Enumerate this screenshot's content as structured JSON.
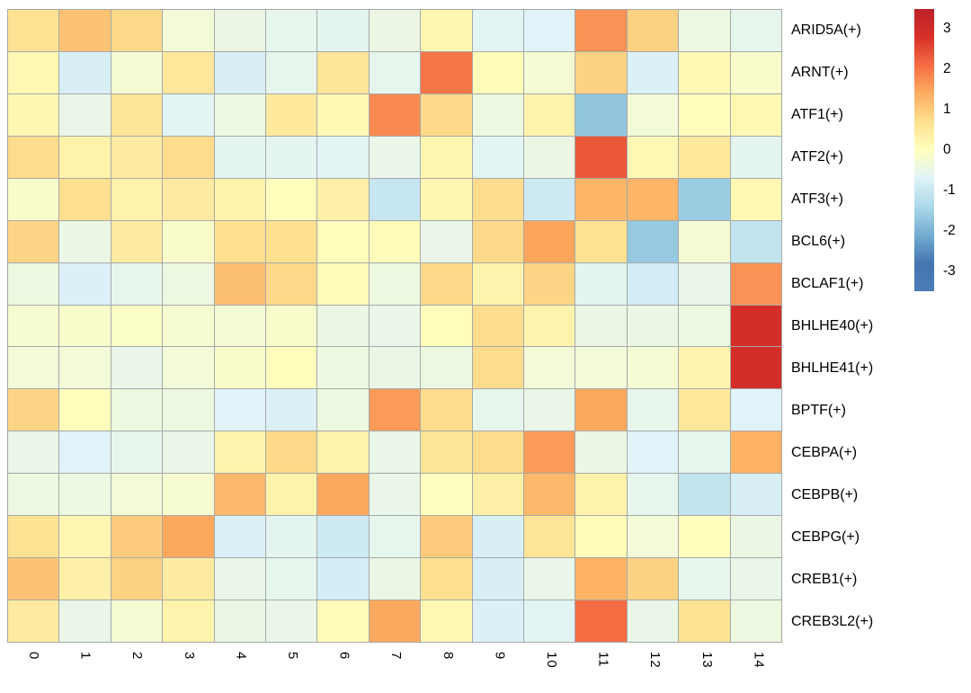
{
  "figure": {
    "background": "#ffffff",
    "grid_line_color": "#a6a9aa"
  },
  "chart_data": {
    "type": "heatmap",
    "title": "",
    "xlabel": "",
    "ylabel": "",
    "x_labels": [
      "0",
      "1",
      "2",
      "3",
      "4",
      "5",
      "6",
      "7",
      "8",
      "9",
      "10",
      "11",
      "12",
      "13",
      "14"
    ],
    "y_labels": [
      "ARID5A(+)",
      "ARNT(+)",
      "ATF1(+)",
      "ATF2(+)",
      "ATF3(+)",
      "BCL6(+)",
      "BCLAF1(+)",
      "BHLHE40(+)",
      "BHLHE41(+)",
      "BPTF(+)",
      "CEBPA(+)",
      "CEBPB(+)",
      "CEBPG(+)",
      "CREB1(+)",
      "CREB3L2(+)"
    ],
    "values": [
      [
        0.65,
        1.1,
        0.8,
        -0.3,
        -0.45,
        -0.55,
        -0.6,
        -0.45,
        0.2,
        -0.65,
        -0.7,
        1.7,
        0.9,
        -0.4,
        -0.55
      ],
      [
        0.15,
        -0.8,
        -0.25,
        0.55,
        -0.8,
        -0.55,
        0.6,
        -0.55,
        2.0,
        0.1,
        -0.25,
        0.9,
        -0.75,
        0.15,
        -0.15
      ],
      [
        0.2,
        -0.5,
        0.6,
        -0.65,
        -0.4,
        0.5,
        0.15,
        1.8,
        0.8,
        -0.4,
        0.3,
        -1.7,
        -0.3,
        0.05,
        0.15
      ],
      [
        0.75,
        0.3,
        0.45,
        0.75,
        -0.6,
        -0.6,
        -0.65,
        -0.5,
        0.2,
        -0.65,
        -0.45,
        2.35,
        0.15,
        0.5,
        -0.6
      ],
      [
        -0.15,
        0.7,
        0.3,
        0.45,
        0.3,
        0.05,
        0.35,
        -1.05,
        0.2,
        0.75,
        -0.95,
        1.3,
        1.3,
        -1.6,
        0.15
      ],
      [
        0.85,
        -0.45,
        0.45,
        -0.15,
        0.7,
        0.7,
        0.05,
        0.1,
        -0.5,
        0.8,
        1.5,
        0.65,
        -1.65,
        -0.25,
        -1.1
      ],
      [
        -0.4,
        -0.75,
        -0.55,
        -0.4,
        1.15,
        0.8,
        0.1,
        -0.4,
        0.8,
        0.25,
        0.85,
        -0.6,
        -0.9,
        -0.5,
        1.7
      ],
      [
        -0.2,
        -0.15,
        -0.1,
        -0.2,
        -0.25,
        -0.15,
        -0.45,
        -0.5,
        0.05,
        0.75,
        0.25,
        -0.45,
        -0.45,
        -0.4,
        2.9
      ],
      [
        -0.3,
        -0.3,
        -0.5,
        -0.3,
        -0.15,
        0.05,
        -0.4,
        -0.45,
        -0.4,
        0.75,
        -0.3,
        -0.3,
        -0.25,
        0.25,
        2.9
      ],
      [
        0.85,
        0.05,
        -0.4,
        -0.4,
        -0.7,
        -0.75,
        -0.4,
        1.6,
        0.75,
        -0.55,
        -0.5,
        1.45,
        -0.55,
        0.55,
        -0.7
      ],
      [
        -0.5,
        -0.7,
        -0.55,
        -0.5,
        0.25,
        0.8,
        0.3,
        -0.5,
        0.6,
        0.75,
        1.6,
        -0.45,
        -0.7,
        -0.55,
        1.35
      ],
      [
        -0.4,
        -0.4,
        -0.3,
        -0.2,
        1.25,
        0.3,
        1.45,
        -0.5,
        0.0,
        0.35,
        1.25,
        0.3,
        -0.55,
        -1.1,
        -0.8
      ],
      [
        0.65,
        0.2,
        1.0,
        1.45,
        -0.75,
        -0.6,
        -0.95,
        -0.55,
        1.0,
        -0.8,
        0.6,
        0.1,
        -0.3,
        0.05,
        -0.45
      ],
      [
        1.1,
        0.35,
        0.9,
        0.45,
        -0.5,
        -0.55,
        -0.85,
        -0.45,
        0.7,
        -0.8,
        -0.5,
        1.35,
        0.9,
        -0.55,
        -0.5
      ],
      [
        0.45,
        -0.5,
        -0.25,
        0.25,
        -0.45,
        -0.5,
        0.1,
        1.45,
        0.15,
        -0.75,
        -0.65,
        2.1,
        -0.5,
        0.65,
        -0.4
      ]
    ],
    "colormap": "RdYlBu_r",
    "vmin": -3.5,
    "vmax": 3.5,
    "colormap_anchors": [
      [
        3.5,
        "#bc2128"
      ],
      [
        2.8,
        "#d73027"
      ],
      [
        2.1,
        "#f46d43"
      ],
      [
        1.4,
        "#fdae61"
      ],
      [
        0.7,
        "#fee090"
      ],
      [
        0.0,
        "#ffffbf"
      ],
      [
        -0.7,
        "#e0f3f8"
      ],
      [
        -1.4,
        "#abd9e9"
      ],
      [
        -2.1,
        "#74add1"
      ],
      [
        -2.8,
        "#4575b1"
      ],
      [
        -3.5,
        "#4a7cb8"
      ]
    ],
    "legend_position": "right",
    "grid": true,
    "colorbar_ticks": [
      "3",
      "2",
      "1",
      "0",
      "-1",
      "-2",
      "-3"
    ],
    "colorbar_tick_values": [
      3,
      2,
      1,
      0,
      -1,
      -2,
      -3
    ]
  }
}
